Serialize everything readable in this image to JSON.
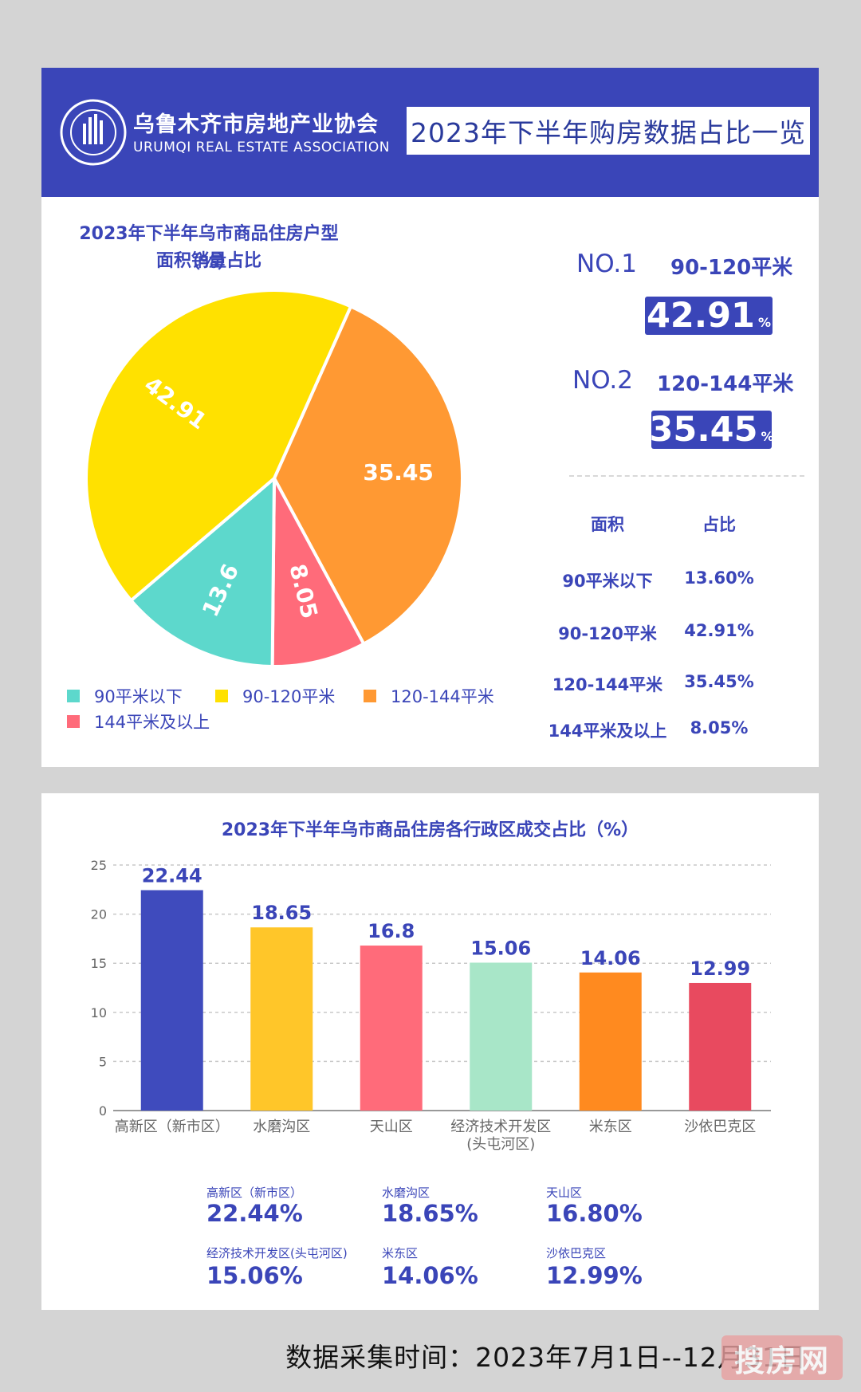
{
  "header": {
    "assoc_cn": "乌鲁木齐市房地产业协会",
    "assoc_en": "URUMQI REAL ESTATE ASSOCIATION",
    "logo_ring_text": "URUMQI REAL ESTATE ASSOCIATION",
    "title": "2023年下半年购房数据占比一览"
  },
  "pie_section": {
    "title_line1": "2023年下半年乌市商品住房户型面积销量占比",
    "title_line2": "（%）",
    "legend": [
      "90平米以下",
      "90-120平米",
      "120-144平米",
      "144平米及以上"
    ],
    "ranks": [
      {
        "label": "NO.1",
        "category": "90-120平米",
        "value": "42.91",
        "unit": "%"
      },
      {
        "label": "NO.2",
        "category": "120-144平米",
        "value": "35.45",
        "unit": "%"
      }
    ],
    "table": {
      "headers": [
        "面积",
        "占比"
      ],
      "rows": [
        [
          "90平米以下",
          "13.60%"
        ],
        [
          "90-120平米",
          "42.91%"
        ],
        [
          "120-144平米",
          "35.45%"
        ],
        [
          "144平米及以上",
          "8.05%"
        ]
      ]
    }
  },
  "bar_section": {
    "title": "2023年下半年乌市商品住房各行政区成交占比（%）",
    "summary": [
      {
        "name": "高新区（新市区）",
        "value": "22.44%"
      },
      {
        "name": "水磨沟区",
        "value": "18.65%"
      },
      {
        "name": "天山区",
        "value": "16.80%"
      },
      {
        "name": "经济技术开发区(头屯河区)",
        "value": "15.06%"
      },
      {
        "name": "米东区",
        "value": "14.06%"
      },
      {
        "name": "沙依巴克区",
        "value": "12.99%"
      }
    ]
  },
  "footer": {
    "text": "数据采集时间：2023年7月1日--12月31日",
    "watermark": "搜房网"
  },
  "colors": {
    "brand": "#3a45b8",
    "teal": "#5dd8cc",
    "yellow": "#ffe100",
    "orange": "#ff9933",
    "pink": "#ff6b7a"
  },
  "chart_data": [
    {
      "type": "pie",
      "title": "2023年下半年乌市商品住房户型面积销量占比（%）",
      "categories": [
        "90平米以下",
        "90-120平米",
        "120-144平米",
        "144平米及以上"
      ],
      "values": [
        13.6,
        42.91,
        35.45,
        8.05
      ],
      "labels": [
        "13.6",
        "42.91",
        "35.45",
        "8.05"
      ],
      "colors": [
        "#5dd8cc",
        "#ffe100",
        "#ff9933",
        "#ff6b7a"
      ],
      "legend": "bottom"
    },
    {
      "type": "bar",
      "title": "2023年下半年乌市商品住房各行政区成交占比（%）",
      "categories": [
        [
          "高新区（新市区）"
        ],
        [
          "水磨沟区"
        ],
        [
          "天山区"
        ],
        [
          "经济技术开发区",
          "(头屯河区)"
        ],
        [
          "米东区"
        ],
        [
          "沙依巴克区"
        ]
      ],
      "values": [
        22.44,
        18.65,
        16.8,
        15.06,
        14.06,
        12.99
      ],
      "value_labels": [
        "22.44",
        "18.65",
        "16.8",
        "15.06",
        "14.06",
        "12.99"
      ],
      "colors": [
        "#3f4bbd",
        "#ffc629",
        "#ff6b7a",
        "#a8e6c8",
        "#ff8a1f",
        "#e84a5f"
      ],
      "yticks": [
        "0",
        "5",
        "10",
        "15",
        "20",
        "25"
      ],
      "ylim": [
        0,
        25
      ],
      "grid": true
    }
  ]
}
